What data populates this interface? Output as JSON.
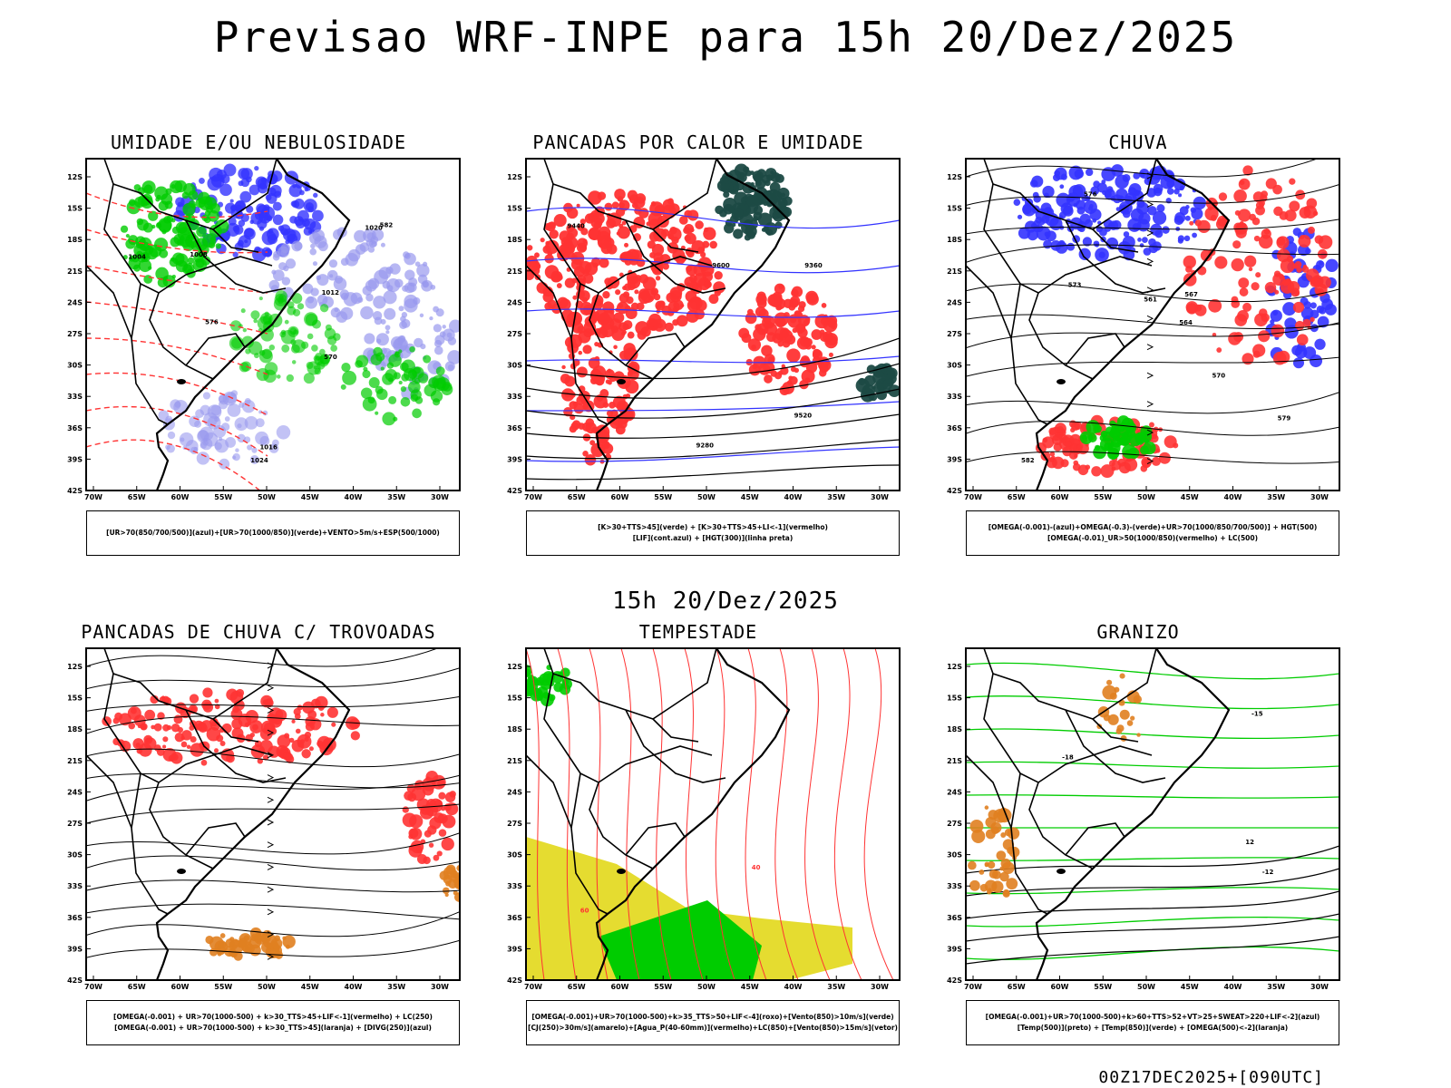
{
  "title": "Previsao WRF-INPE  para 15h 20/Dez/2025",
  "subtitle": "15h 20/Dez/2025",
  "footer": "00Z17DEC2025+[090UTC]",
  "axes": {
    "lat_labels": [
      "12S",
      "15S",
      "18S",
      "21S",
      "24S",
      "27S",
      "30S",
      "33S",
      "36S",
      "39S",
      "42S"
    ],
    "lon_labels": [
      "70W",
      "65W",
      "60W",
      "55W",
      "50W",
      "45W",
      "40W",
      "35W",
      "30W"
    ]
  },
  "panels": [
    {
      "title": "UMIDADE E/OU NEBULOSIDADE",
      "legend": [
        "[UR>70(850/700/500)](azul)+[UR>70(1000/850)](verde)+VENTO>5m/s+ESP(500/1000)"
      ],
      "contour_labels": [
        "1004",
        "1008",
        "1012",
        "1016",
        "1020",
        "1024",
        "570",
        "576",
        "582"
      ]
    },
    {
      "title": "PANCADAS POR CALOR E UMIDADE",
      "legend": [
        "[K>30+TTS>45](verde) + [K>30+TTS>45+LI<-1](vermelho)",
        "[LIF](cont.azul) + [HGT(300)](linha preta)"
      ],
      "contour_labels": [
        "9600",
        "9520",
        "9440",
        "9360",
        "9280"
      ]
    },
    {
      "title": "CHUVA",
      "legend": [
        "[OMEGA(-0.001)-(azul)+OMEGA(-0.3)-(verde)+UR>70(1000/850/700/500)] + HGT(500)",
        "[OMEGA(-0.01)_UR>50(1000/850)(vermelho) + LC(500)"
      ],
      "contour_labels": [
        "582",
        "579",
        "576",
        "573",
        "570",
        "567",
        "564",
        "561"
      ]
    },
    {
      "title": "PANCADAS DE CHUVA C/ TROVOADAS",
      "legend": [
        "[OMEGA(-0.001) + UR>70(1000-500) + k>30_TTS>45+LIF<-1](vermelho) + LC(250)",
        "[OMEGA(-0.001) + UR>70(1000-500) + k>30_TTS>45](laranja) + [DIVG(250)](azul)"
      ],
      "contour_labels": []
    },
    {
      "title": "TEMPESTADE",
      "legend": [
        "[OMEGA(-0.001)+UR>70(1000-500)+k>35_TTS>50+LIF<-4](roxo)+[Vento(850)>10m/s](verde)",
        "[CJ(250)>30m/s](amarelo)+[Agua_P(40-60mm)](vermelho)+LC(850)+[Vento(850)>15m/s](vetor)"
      ],
      "contour_labels": [
        "40",
        "60"
      ]
    },
    {
      "title": "GRANIZO",
      "legend": [
        "[OMEGA(-0.001)+UR>70(1000-500)+k>60+TTS>52+VT>25+SWEAT>220+LIF<-2](azul)",
        "[Temp(500)](preto) + [Temp(850)](verde) + [OMEGA(500)<-2](laranja)"
      ],
      "contour_labels": [
        "-12",
        "-15",
        "-18",
        "12"
      ]
    }
  ],
  "colors": {
    "blue": "#3333ff",
    "lightblue": "#9999ee",
    "green": "#00cc00",
    "red": "#ff3333",
    "darkteal": "#1c4a44",
    "orange": "#e08020",
    "yellow": "#e5dc30",
    "black": "#000000"
  }
}
